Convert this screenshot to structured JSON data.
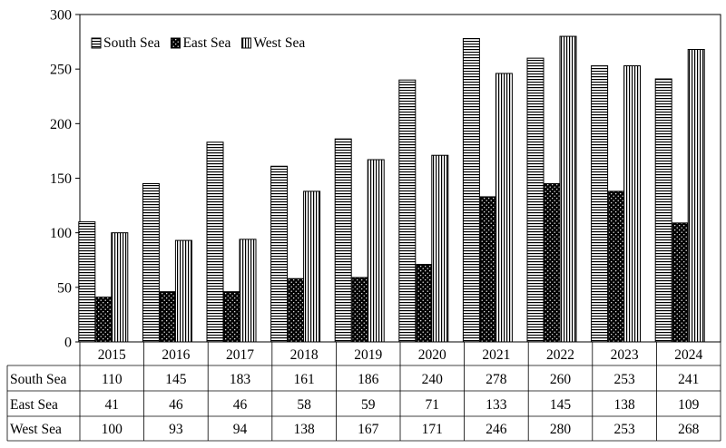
{
  "chart_data": {
    "type": "bar",
    "categories": [
      "2015",
      "2016",
      "2017",
      "2018",
      "2019",
      "2020",
      "2021",
      "2022",
      "2023",
      "2024"
    ],
    "series": [
      {
        "name": "South Sea",
        "values": [
          110,
          145,
          183,
          161,
          186,
          240,
          278,
          260,
          253,
          241
        ],
        "pattern": "horizontal-stripes"
      },
      {
        "name": "East Sea",
        "values": [
          41,
          46,
          46,
          58,
          59,
          71,
          133,
          145,
          138,
          109
        ],
        "pattern": "black-dotted"
      },
      {
        "name": "West Sea",
        "values": [
          100,
          93,
          94,
          138,
          167,
          171,
          246,
          280,
          253,
          268
        ],
        "pattern": "vertical-stripes"
      }
    ],
    "ylim": [
      0,
      300
    ],
    "yticks": [
      0,
      50,
      100,
      150,
      200,
      250,
      300
    ],
    "legend": "top-left",
    "grid": false,
    "data_table": true
  }
}
